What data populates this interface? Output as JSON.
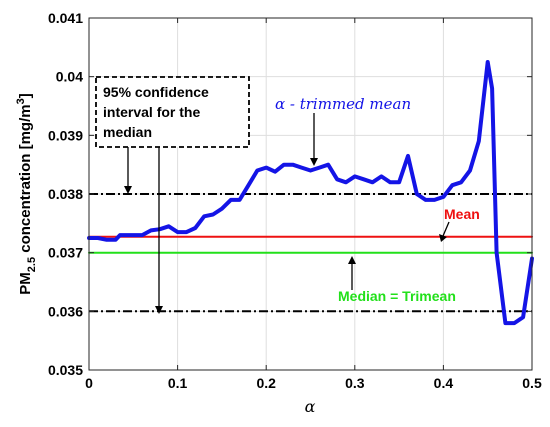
{
  "chart_data": {
    "type": "line",
    "title": "",
    "xlabel": "α",
    "ylabel": {
      "pre": "PM",
      "sub": "2.5",
      "mid": " concentration [mg/m",
      "sup": "3",
      "post": "]"
    },
    "xlim": [
      0,
      0.5
    ],
    "ylim": [
      0.035,
      0.041
    ],
    "x_ticks": [
      "0",
      "0.1",
      "0.2",
      "0.3",
      "0.4",
      "0.5"
    ],
    "y_ticks": [
      "0.035",
      "0.036",
      "0.037",
      "0.038",
      "0.039",
      "0.04",
      "0.041"
    ],
    "grid": true,
    "series": [
      {
        "name": "α - trimmed mean",
        "color": "#1414e6",
        "style": "solid",
        "x": [
          0,
          0.01,
          0.02,
          0.03,
          0.035,
          0.04,
          0.05,
          0.06,
          0.07,
          0.08,
          0.09,
          0.1,
          0.11,
          0.12,
          0.13,
          0.14,
          0.15,
          0.16,
          0.17,
          0.18,
          0.19,
          0.2,
          0.21,
          0.22,
          0.23,
          0.24,
          0.25,
          0.26,
          0.27,
          0.28,
          0.29,
          0.3,
          0.31,
          0.32,
          0.33,
          0.34,
          0.35,
          0.36,
          0.37,
          0.38,
          0.39,
          0.4,
          0.41,
          0.42,
          0.43,
          0.44,
          0.45,
          0.455,
          0.46,
          0.47,
          0.48,
          0.49,
          0.5
        ],
        "y": [
          0.03725,
          0.03725,
          0.03722,
          0.03722,
          0.0373,
          0.0373,
          0.0373,
          0.0373,
          0.03738,
          0.0374,
          0.03745,
          0.03735,
          0.03735,
          0.03742,
          0.03762,
          0.03765,
          0.03775,
          0.0379,
          0.0379,
          0.03815,
          0.0384,
          0.03845,
          0.03838,
          0.0385,
          0.0385,
          0.03845,
          0.0384,
          0.03845,
          0.0385,
          0.03825,
          0.0382,
          0.0383,
          0.03825,
          0.0382,
          0.0383,
          0.0382,
          0.0382,
          0.03865,
          0.038,
          0.0379,
          0.0379,
          0.03795,
          0.03815,
          0.0382,
          0.0384,
          0.0389,
          0.04025,
          0.0398,
          0.037,
          0.0358,
          0.0358,
          0.0359,
          0.0369
        ]
      },
      {
        "name": "Mean",
        "color": "#ee1111",
        "style": "solid",
        "x": [
          0,
          0.5
        ],
        "y": [
          0.03727,
          0.03727
        ]
      },
      {
        "name": "Median = Trimean",
        "color": "#22e01a",
        "style": "solid",
        "x": [
          0,
          0.5
        ],
        "y": [
          0.037,
          0.037
        ]
      },
      {
        "name": "95% upper",
        "color": "#000000",
        "style": "dashdot",
        "x": [
          0,
          0.5
        ],
        "y": [
          0.038,
          0.038
        ]
      },
      {
        "name": "95% lower",
        "color": "#000000",
        "style": "dashdot",
        "x": [
          0,
          0.5
        ],
        "y": [
          0.036,
          0.036
        ]
      }
    ],
    "annotations": {
      "trimmed": "α - trimmed mean",
      "mean": "Mean",
      "median": "Median = Trimean",
      "ci": [
        "95% confidence",
        "interval for the",
        "median"
      ]
    }
  }
}
